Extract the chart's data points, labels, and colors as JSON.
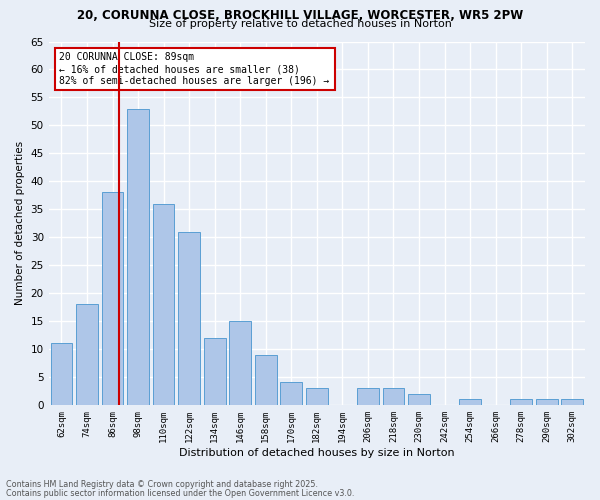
{
  "title1": "20, CORUNNA CLOSE, BROCKHILL VILLAGE, WORCESTER, WR5 2PW",
  "title2": "Size of property relative to detached houses in Norton",
  "xlabel": "Distribution of detached houses by size in Norton",
  "ylabel": "Number of detached properties",
  "bar_labels": [
    "62sqm",
    "74sqm",
    "86sqm",
    "98sqm",
    "110sqm",
    "122sqm",
    "134sqm",
    "146sqm",
    "158sqm",
    "170sqm",
    "182sqm",
    "194sqm",
    "206sqm",
    "218sqm",
    "230sqm",
    "242sqm",
    "254sqm",
    "266sqm",
    "278sqm",
    "290sqm",
    "302sqm"
  ],
  "bar_values": [
    11,
    18,
    38,
    53,
    36,
    31,
    12,
    15,
    9,
    4,
    3,
    0,
    3,
    3,
    2,
    0,
    1,
    0,
    1,
    1,
    1
  ],
  "bar_color": "#aec6e8",
  "bar_edge_color": "#5a9fd4",
  "background_color": "#e8eef7",
  "grid_color": "#ffffff",
  "vline_color": "#cc0000",
  "annotation_text": "20 CORUNNA CLOSE: 89sqm\n← 16% of detached houses are smaller (38)\n82% of semi-detached houses are larger (196) →",
  "annotation_box_color": "#ffffff",
  "annotation_box_edge": "#cc0000",
  "footer_line1": "Contains HM Land Registry data © Crown copyright and database right 2025.",
  "footer_line2": "Contains public sector information licensed under the Open Government Licence v3.0.",
  "ylim": [
    0,
    65
  ],
  "yticks": [
    0,
    5,
    10,
    15,
    20,
    25,
    30,
    35,
    40,
    45,
    50,
    55,
    60,
    65
  ]
}
